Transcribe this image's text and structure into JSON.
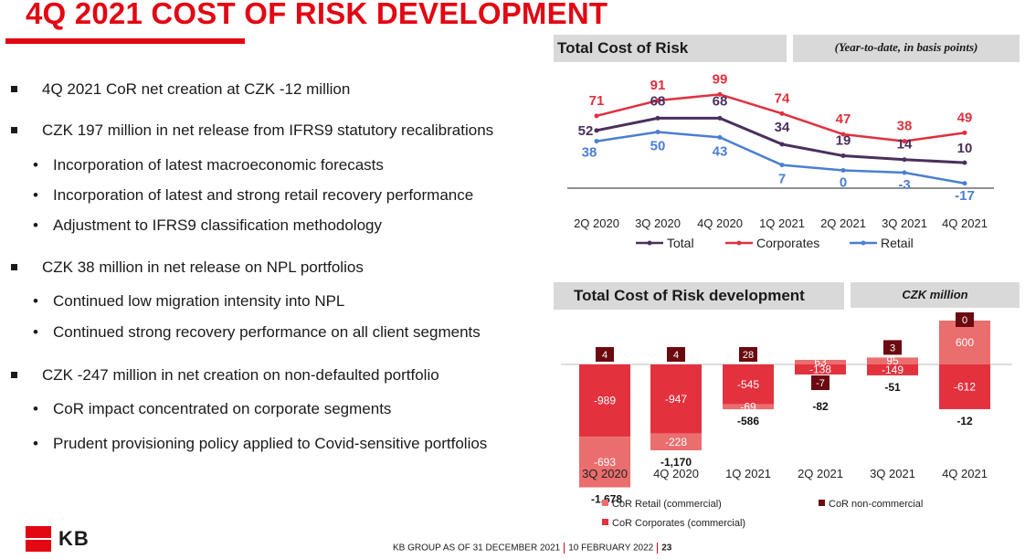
{
  "title": "4Q 2021 COST OF RISK DEVELOPMENT",
  "bullets": [
    {
      "level": 1,
      "text": "4Q 2021 CoR net creation at CZK -12 million"
    },
    {
      "level": 1,
      "text": "CZK 197 million in net release from IFRS9 statutory recalibrations"
    },
    {
      "level": 2,
      "text": "Incorporation of latest macroeconomic forecasts"
    },
    {
      "level": 2,
      "text": "Incorporation of latest and strong retail recovery performance"
    },
    {
      "level": 2,
      "text": "Adjustment to IFRS9 classification methodology"
    },
    {
      "level": 1,
      "text": "CZK 38 million in net release on NPL portfolios"
    },
    {
      "level": 2,
      "text": "Continued low migration intensity into NPL"
    },
    {
      "level": 2,
      "text": "Continued strong recovery performance on all client segments"
    },
    {
      "level": 1,
      "text": "CZK -247 million in net creation on non-defaulted portfolio"
    },
    {
      "level": 2,
      "text": "CoR impact concentrated on corporate segments"
    },
    {
      "level": 2,
      "text": "Prudent provisioning policy applied to Covid-sensitive portfolios"
    }
  ],
  "panel1": {
    "title": "Total Cost of Risk",
    "note": "(Year-to-date, in basis points)"
  },
  "panel2": {
    "title": "Total Cost of Risk development",
    "note": "CZK million"
  },
  "colors": {
    "accent": "#e30613",
    "total": "#4b2f5c",
    "corporates": "#e0303f",
    "retail": "#4a7fd0",
    "bar_retail": "#ea6e6e",
    "bar_corporates": "#e3323e",
    "bar_noncommercial": "#6b0a0f"
  },
  "chart_data": [
    {
      "type": "line",
      "x": [
        "2Q 2020",
        "3Q 2020",
        "4Q 2020",
        "1Q 2021",
        "2Q 2021",
        "3Q 2021",
        "4Q 2021"
      ],
      "series": [
        {
          "name": "Total",
          "values": [
            52,
            68,
            68,
            34,
            19,
            14,
            10
          ]
        },
        {
          "name": "Corporates",
          "values": [
            71,
            91,
            99,
            74,
            47,
            38,
            49
          ]
        },
        {
          "name": "Retail",
          "values": [
            38,
            50,
            43,
            7,
            0,
            -3,
            -17
          ]
        }
      ],
      "legend": "bottom"
    },
    {
      "type": "bar",
      "stacked": true,
      "categories": [
        "3Q 2020",
        "4Q 2020",
        "1Q 2021",
        "2Q 2021",
        "3Q 2021",
        "4Q 2021"
      ],
      "series": [
        {
          "name": "CoR Retail (commercial)",
          "values": [
            -693,
            -228,
            -69,
            63,
            95,
            600
          ]
        },
        {
          "name": "CoR Corporates (commercial)",
          "values": [
            -989,
            -947,
            -545,
            -138,
            -149,
            -612
          ]
        },
        {
          "name": "CoR non-commercial",
          "values": [
            4,
            4,
            28,
            -7,
            3,
            0
          ]
        }
      ],
      "totals": [
        "-1,678",
        "-1,170",
        "-586",
        "-82",
        "-51",
        "-12"
      ],
      "legend": "bottom"
    }
  ],
  "footer": {
    "group": "KB GROUP AS OF 31 DECEMBER 2021",
    "date": "10 FEBRUARY 2022",
    "page": "23"
  },
  "logo": {
    "text": "KB"
  }
}
